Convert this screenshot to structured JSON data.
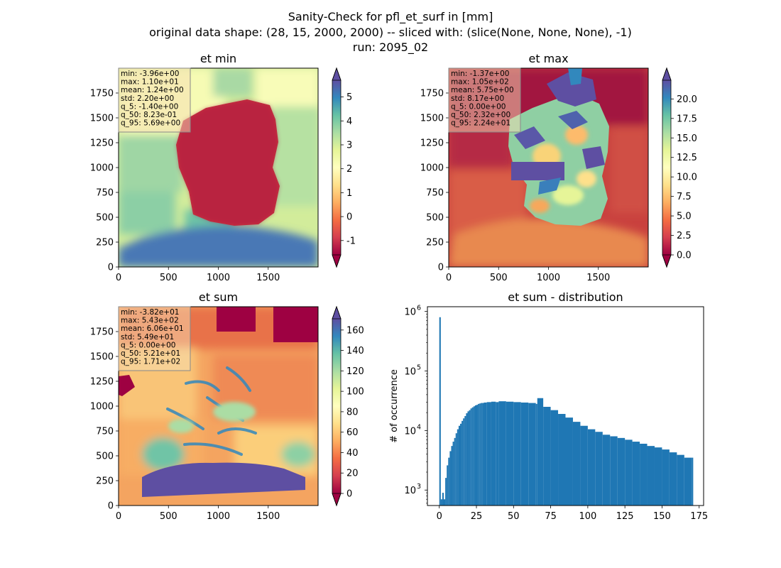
{
  "figure": {
    "suptitle_lines": [
      "Sanity-Check for pfl_et_surf in [mm]",
      "original data shape: (28, 15, 2000, 2000) -- sliced with: (slice(None, None, None), -1)",
      "run: 2095_02"
    ]
  },
  "chart_data": [
    {
      "type": "heatmap",
      "title": "et min",
      "xlim": [
        0,
        2000
      ],
      "ylim": [
        0,
        2000
      ],
      "xticks": [
        0,
        500,
        1000,
        1500
      ],
      "yticks": [
        0,
        250,
        500,
        750,
        1000,
        1250,
        1500,
        1750
      ],
      "colormap": "Spectral",
      "colorbar": {
        "range": [
          -1.6,
          5.7
        ],
        "ticks": [
          -1,
          0,
          1,
          2,
          3,
          4,
          5
        ],
        "extend": "both"
      },
      "stats_box": [
        "min: -3.96e+00",
        "max: 1.10e+01",
        "mean: 1.24e+00",
        "std: 2.20e+00",
        "q_5: -1.40e+00",
        "q_50: 8.23e-01",
        "q_95: 5.69e+00"
      ]
    },
    {
      "type": "heatmap",
      "title": "et max",
      "xlim": [
        0,
        2000
      ],
      "ylim": [
        0,
        2000
      ],
      "xticks": [
        0,
        500,
        1000,
        1500
      ],
      "yticks": [
        0,
        250,
        500,
        750,
        1000,
        1250,
        1500,
        1750
      ],
      "colormap": "Spectral",
      "colorbar": {
        "range": [
          0,
          22.4
        ],
        "ticks": [
          "0.0",
          "2.5",
          "5.0",
          "7.5",
          "10.0",
          "12.5",
          "15.0",
          "17.5",
          "20.0"
        ],
        "extend": "both"
      },
      "stats_box": [
        "min: -1.37e+00",
        "max: 1.05e+02",
        "mean: 5.75e+00",
        "std: 8.17e+00",
        "q_5: 0.00e+00",
        "q_50: 2.32e+00",
        "q_95: 2.24e+01"
      ]
    },
    {
      "type": "heatmap",
      "title": "et sum",
      "xlim": [
        0,
        2000
      ],
      "ylim": [
        0,
        2000
      ],
      "xticks": [
        0,
        500,
        1000,
        1500
      ],
      "yticks": [
        0,
        250,
        500,
        750,
        1000,
        1250,
        1500,
        1750
      ],
      "colormap": "Spectral",
      "colorbar": {
        "range": [
          0,
          171
        ],
        "ticks": [
          0,
          20,
          40,
          60,
          80,
          100,
          120,
          140,
          160
        ],
        "extend": "both"
      },
      "stats_box": [
        "min: -3.82e+01",
        "max: 5.43e+02",
        "mean: 6.06e+01",
        "std: 5.49e+01",
        "q_5: 0.00e+00",
        "q_50: 5.21e+01",
        "q_95: 1.71e+02"
      ]
    },
    {
      "type": "bar",
      "title": "et sum - distribution",
      "ylabel": "# of occurrence",
      "xlabel": "",
      "yscale": "log",
      "xlim": [
        -8,
        178
      ],
      "ylim": [
        550,
        1200000
      ],
      "xticks": [
        0,
        25,
        50,
        75,
        100,
        125,
        150,
        175
      ],
      "yticks": [
        1000,
        10000,
        100000,
        1000000
      ],
      "ytick_labels": [
        "10",
        "10",
        "10",
        "10"
      ],
      "ytick_exponents": [
        "3",
        "4",
        "5",
        "6"
      ],
      "color": "#1f77b4",
      "bin_width": 1.0,
      "x": [
        0,
        1,
        2,
        3,
        4,
        5,
        6,
        7,
        8,
        9,
        10,
        11,
        12,
        13,
        14,
        15,
        16,
        17,
        18,
        19,
        20,
        21,
        22,
        23,
        24,
        25,
        26,
        27,
        28,
        29,
        30,
        32,
        35,
        38,
        40,
        45,
        50,
        55,
        60,
        65,
        66,
        70,
        75,
        80,
        85,
        90,
        95,
        100,
        105,
        110,
        115,
        120,
        125,
        130,
        135,
        140,
        145,
        150,
        155,
        160,
        165,
        170
      ],
      "values": [
        800000,
        700,
        900,
        700,
        1600,
        2600,
        3500,
        4500,
        5500,
        6500,
        7500,
        9000,
        10500,
        12000,
        13000,
        14500,
        16000,
        17500,
        19500,
        21000,
        22000,
        23500,
        24500,
        25500,
        26500,
        27000,
        28000,
        28500,
        29000,
        29000,
        29500,
        30000,
        30500,
        30000,
        31000,
        30500,
        30000,
        29500,
        29000,
        28000,
        35000,
        25000,
        22000,
        19000,
        16500,
        14000,
        12000,
        10500,
        9500,
        8500,
        8000,
        7500,
        7000,
        6500,
        6000,
        5500,
        5200,
        4800,
        4300,
        3900,
        3500,
        3500
      ]
    }
  ]
}
